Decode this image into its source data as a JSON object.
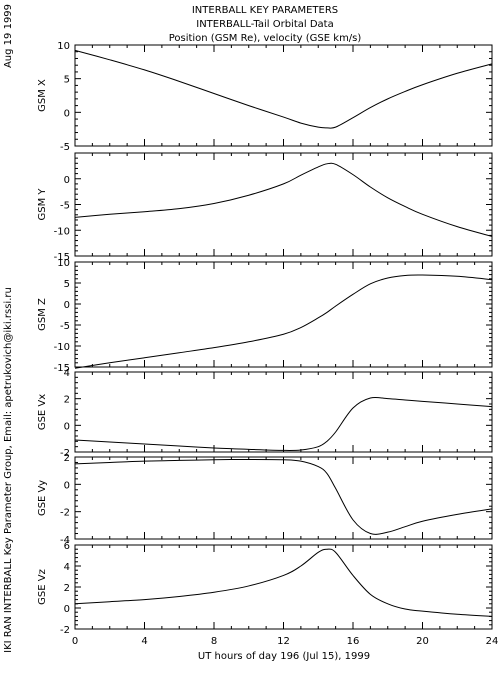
{
  "header": {
    "date": "Aug 19 1999",
    "title_lines": [
      "INTERBALL KEY PARAMETERS",
      "INTERBALL-Tail Orbital Data",
      "Position (GSM Re), velocity (GSE km/s)"
    ]
  },
  "credit": "IKI RAN INTERBALL Key Parameter Group, Email: apetrukovich@iki.rssi.ru",
  "chart_data": {
    "type": "line",
    "xlabel": "UT hours of day 196 (Jul 15), 1999",
    "xlim": [
      0,
      24
    ],
    "xticks": [
      0,
      4,
      8,
      12,
      16,
      20,
      24
    ],
    "x": [
      0,
      2,
      4,
      6,
      8,
      10,
      12,
      13,
      14,
      14.5,
      15,
      16,
      17,
      18,
      19,
      20,
      22,
      24
    ],
    "panels": [
      {
        "ylabel": "GSM X",
        "ylim": [
          -5,
          10
        ],
        "yticks": [
          -5,
          0,
          5,
          10
        ],
        "values": [
          9.2,
          7.8,
          6.3,
          4.6,
          2.8,
          1.0,
          -0.7,
          -1.6,
          -2.2,
          -2.3,
          -2.2,
          -0.8,
          0.7,
          2.0,
          3.1,
          4.1,
          5.8,
          7.2
        ]
      },
      {
        "ylabel": "GSM Y",
        "ylim": [
          -15,
          5
        ],
        "yticks": [
          -15,
          -10,
          -5,
          0
        ],
        "values": [
          -7.5,
          -6.9,
          -6.4,
          -5.8,
          -4.8,
          -3.2,
          -1.0,
          0.7,
          2.3,
          2.9,
          2.8,
          0.8,
          -1.6,
          -3.7,
          -5.4,
          -6.9,
          -9.3,
          -11.2
        ]
      },
      {
        "ylabel": "GSM Z",
        "ylim": [
          -15,
          10
        ],
        "yticks": [
          -15,
          -10,
          -5,
          0,
          5,
          10
        ],
        "values": [
          -15.3,
          -14.0,
          -12.8,
          -11.6,
          -10.4,
          -9.0,
          -7.2,
          -5.6,
          -3.3,
          -2.0,
          -0.5,
          2.3,
          4.8,
          6.2,
          6.8,
          6.9,
          6.6,
          5.8
        ]
      },
      {
        "ylabel": "GSE Vx",
        "ylim": [
          -2,
          4
        ],
        "yticks": [
          -2,
          0,
          2,
          4
        ],
        "values": [
          -1.1,
          -1.25,
          -1.4,
          -1.55,
          -1.7,
          -1.8,
          -1.88,
          -1.85,
          -1.6,
          -1.2,
          -0.5,
          1.3,
          2.05,
          2.0,
          1.9,
          1.8,
          1.6,
          1.4
        ]
      },
      {
        "ylabel": "GSE Vy",
        "ylim": [
          -4,
          2
        ],
        "yticks": [
          -4,
          -2,
          0,
          2
        ],
        "values": [
          1.5,
          1.6,
          1.7,
          1.75,
          1.8,
          1.82,
          1.8,
          1.7,
          1.3,
          0.8,
          -0.3,
          -2.6,
          -3.6,
          -3.5,
          -3.1,
          -2.7,
          -2.2,
          -1.8
        ]
      },
      {
        "ylabel": "GSE Vz",
        "ylim": [
          -2,
          6
        ],
        "yticks": [
          -2,
          0,
          2,
          4,
          6
        ],
        "values": [
          0.4,
          0.6,
          0.8,
          1.1,
          1.5,
          2.1,
          3.1,
          4.0,
          5.3,
          5.6,
          5.3,
          3.1,
          1.3,
          0.4,
          -0.1,
          -0.3,
          -0.6,
          -0.8
        ]
      }
    ]
  }
}
